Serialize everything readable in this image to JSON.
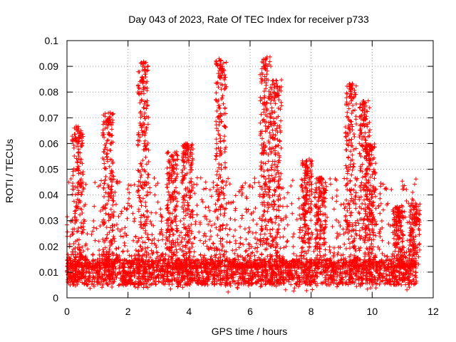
{
  "chart_data": {
    "type": "scatter",
    "title": "Day 043 of 2023, Rate Of TEC Index for receiver p733",
    "xlabel": "GPS time / hours",
    "ylabel": "ROTI / TECUs",
    "xlim": [
      0,
      12
    ],
    "ylim": [
      0,
      0.1
    ],
    "x_ticks": [
      0,
      2,
      4,
      6,
      8,
      10,
      12
    ],
    "x_tick_labels": [
      "0",
      "2",
      "4",
      "6",
      "8",
      "10",
      "12"
    ],
    "y_ticks": [
      0,
      0.01,
      0.02,
      0.03,
      0.04,
      0.05,
      0.06,
      0.07,
      0.08,
      0.09,
      0.1
    ],
    "y_tick_labels": [
      "0",
      "0.01",
      "0.02",
      "0.03",
      "0.04",
      "0.05",
      "0.06",
      "0.07",
      "0.08",
      "0.09",
      "0.1"
    ],
    "grid": true,
    "marker": "+",
    "series": [
      {
        "name": "ROTI",
        "color": "#ff0000",
        "x_range": [
          0.0,
          11.45
        ],
        "baseline_range": [
          0.005,
          0.015
        ],
        "peaks": [
          {
            "x": 0.35,
            "y": 0.067
          },
          {
            "x": 1.35,
            "y": 0.072
          },
          {
            "x": 2.5,
            "y": 0.092
          },
          {
            "x": 3.45,
            "y": 0.057
          },
          {
            "x": 3.95,
            "y": 0.06
          },
          {
            "x": 5.05,
            "y": 0.093
          },
          {
            "x": 6.5,
            "y": 0.094
          },
          {
            "x": 6.85,
            "y": 0.085
          },
          {
            "x": 7.85,
            "y": 0.054
          },
          {
            "x": 8.3,
            "y": 0.047
          },
          {
            "x": 9.3,
            "y": 0.084
          },
          {
            "x": 9.75,
            "y": 0.077
          },
          {
            "x": 9.95,
            "y": 0.06
          },
          {
            "x": 10.85,
            "y": 0.036
          },
          {
            "x": 11.4,
            "y": 0.037
          }
        ]
      }
    ]
  }
}
